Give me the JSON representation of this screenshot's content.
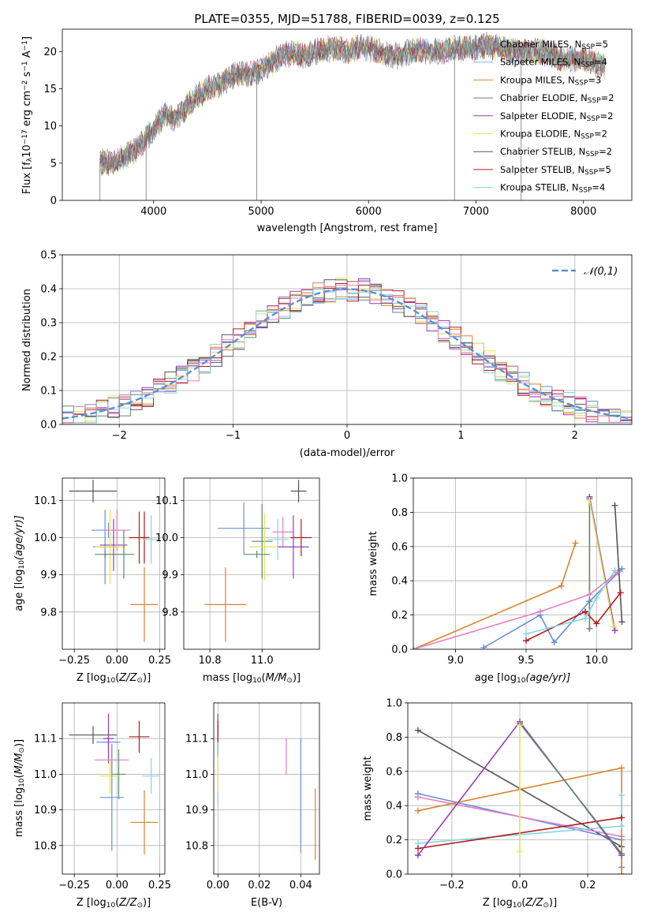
{
  "figure_title": "PLATE=0355, MJD=51788, FIBERID=0039, z=0.125",
  "colors": {
    "Chabrier MILES": "#6a8fd8",
    "Salpeter MILES": "#8fb0e0",
    "Kroupa MILES": "#d9822b",
    "Chabrier ELODIE": "#5c8a6a",
    "Salpeter ELODIE": "#9b3bb5",
    "Kroupa ELODIE": "#e3e35a",
    "Chabrier STELIB": "#555555",
    "Salpeter STELIB": "#b01c1c",
    "Kroupa STELIB": "#88d4e0",
    "pink": "#e37fc0",
    "gaussian": "#5b8fd8"
  },
  "chart_data": [
    {
      "id": "spectrum",
      "type": "line",
      "xlabel": "wavelength [Angstrom, rest frame]",
      "ylabel": "Flux [f",
      "ylabel_rest": "10",
      "ylabel_sup1": "−17",
      "ylabel_mid": " erg cm",
      "ylabel_sup2": "−2",
      "ylabel_mid2": " s",
      "ylabel_sup3": "−1",
      "ylabel_end": " A",
      "ylabel_sup4": "−1",
      "ylabel_close": "]",
      "xlim": [
        3150,
        8450
      ],
      "ylim": [
        0,
        23
      ],
      "xticks": [
        4000,
        5000,
        6000,
        7000,
        8000
      ],
      "yticks": [
        0,
        5,
        10,
        15,
        20
      ],
      "legend": [
        {
          "name": "Chabrier MILES, N",
          "sub": "SSP",
          "val": "=5",
          "color": "#6a8fd8"
        },
        {
          "name": "Salpeter MILES, N",
          "sub": "SSP",
          "val": "=4",
          "color": "#8fb0e0"
        },
        {
          "name": "Kroupa MILES, N",
          "sub": "SSP",
          "val": "=3",
          "color": "#d9822b"
        },
        {
          "name": "Chabrier ELODIE, N",
          "sub": "SSP",
          "val": "=2",
          "color": "#5c8a6a"
        },
        {
          "name": "Salpeter ELODIE, N",
          "sub": "SSP",
          "val": "=2",
          "color": "#9b3bb5"
        },
        {
          "name": "Kroupa ELODIE, N",
          "sub": "SSP",
          "val": "=2",
          "color": "#e3e35a"
        },
        {
          "name": "Chabrier STELIB, N",
          "sub": "SSP",
          "val": "=2",
          "color": "#555555"
        },
        {
          "name": "Salpeter STELIB, N",
          "sub": "SSP",
          "val": "=5",
          "color": "#b01c1c"
        },
        {
          "name": "Kroupa STELIB, N",
          "sub": "SSP",
          "val": "=4",
          "color": "#88d4e0"
        }
      ],
      "envelope": [
        [
          3500,
          5.2
        ],
        [
          3600,
          5.0
        ],
        [
          3700,
          5.6
        ],
        [
          3800,
          6.5
        ],
        [
          3900,
          7.8
        ],
        [
          4000,
          9.5
        ],
        [
          4100,
          11.5
        ],
        [
          4200,
          11.0
        ],
        [
          4300,
          12.5
        ],
        [
          4400,
          14.0
        ],
        [
          4500,
          15.0
        ],
        [
          4600,
          15.5
        ],
        [
          4700,
          16.5
        ],
        [
          4800,
          17.0
        ],
        [
          4900,
          17.0
        ],
        [
          5000,
          17.5
        ],
        [
          5100,
          18.5
        ],
        [
          5200,
          19.5
        ],
        [
          5300,
          19.8
        ],
        [
          5400,
          19.5
        ],
        [
          5500,
          20.0
        ],
        [
          5600,
          20.2
        ],
        [
          5700,
          20.5
        ],
        [
          5800,
          20.0
        ],
        [
          5900,
          20.5
        ],
        [
          6000,
          20.5
        ],
        [
          6100,
          20.0
        ],
        [
          6200,
          19.5
        ],
        [
          6300,
          19.5
        ],
        [
          6400,
          20.0
        ],
        [
          6500,
          20.2
        ],
        [
          6600,
          20.0
        ],
        [
          6700,
          20.0
        ],
        [
          6800,
          20.5
        ],
        [
          6900,
          20.5
        ],
        [
          7000,
          20.5
        ],
        [
          7100,
          20.8
        ],
        [
          7200,
          20.5
        ],
        [
          7300,
          20.2
        ],
        [
          7400,
          20.0
        ],
        [
          7500,
          20.0
        ],
        [
          7600,
          20.0
        ],
        [
          7700,
          19.5
        ],
        [
          7800,
          19.0
        ],
        [
          7900,
          19.0
        ],
        [
          8000,
          19.0
        ],
        [
          8100,
          18.5
        ],
        [
          8200,
          18.0
        ]
      ],
      "spikes_down": [
        [
          3500,
          0
        ],
        [
          3930,
          0
        ],
        [
          4960,
          0
        ],
        [
          6800,
          0
        ],
        [
          7420,
          0
        ]
      ]
    },
    {
      "id": "residuals",
      "type": "histogram",
      "xlabel": "(data-model)/error",
      "ylabel": "Normed distribution",
      "xlim": [
        -2.5,
        2.5
      ],
      "ylim": [
        0,
        0.5
      ],
      "xticks": [
        -2,
        -1,
        0,
        1,
        2
      ],
      "yticks": [
        0.0,
        0.1,
        0.2,
        0.3,
        0.4,
        0.5
      ],
      "legend": "𝒩(0,1)",
      "bin_width": 0.1,
      "hist_colors": [
        "#6a8fd8",
        "#d9822b",
        "#5c8a6a",
        "#9b3bb5",
        "#e3e35a",
        "#555555",
        "#b01c1c",
        "#88d4e0",
        "#e37fc0"
      ]
    },
    {
      "id": "age_vs_Z",
      "type": "errorbar",
      "xlabel": "Z [log",
      "xlabel_sub": "10",
      "xlabel_end": "(Z/Z",
      "xlabel_sun": "⊙",
      "xlabel_close": ")]",
      "ylabel": "age  [log",
      "ylabel_sub": "10",
      "ylabel_end": "(age/yr)]",
      "xlim": [
        -0.32,
        0.28
      ],
      "ylim": [
        9.7,
        10.16
      ],
      "xticks": [
        -0.25,
        0.0,
        0.25
      ],
      "xticklabels": [
        "−0.25",
        "0.00",
        "0.25"
      ],
      "yticks": [
        9.8,
        9.9,
        10.0,
        10.1
      ],
      "points": [
        {
          "x": -0.14,
          "y": 10.125,
          "xe": 0.14,
          "ye": 0.03,
          "c": "#555555"
        },
        {
          "x": -0.05,
          "y": 10.02,
          "xe": 0.1,
          "ye": 0.02,
          "c": "#6a8fd8"
        },
        {
          "x": -0.07,
          "y": 9.975,
          "xe": 0.07,
          "ye": 0.1,
          "c": "#6a8fd8"
        },
        {
          "x": -0.02,
          "y": 9.98,
          "xe": 0.08,
          "ye": 0.07,
          "c": "#9b3bb5"
        },
        {
          "x": 0.0,
          "y": 10.02,
          "xe": 0.08,
          "ye": 0.055,
          "c": "#e37fc0"
        },
        {
          "x": -0.04,
          "y": 9.975,
          "xe": 0.09,
          "ye": 0.1,
          "c": "#e3e35a"
        },
        {
          "x": 0.04,
          "y": 9.955,
          "xe": 0.06,
          "ye": 0.065,
          "c": "#5c8a6a"
        },
        {
          "x": -0.07,
          "y": 9.955,
          "xe": 0.06,
          "ye": 0.01,
          "c": "#5c8a6a"
        },
        {
          "x": 0.13,
          "y": 10.0,
          "xe": 0.06,
          "ye": 0.07,
          "c": "#b01c1c"
        },
        {
          "x": 0.16,
          "y": 10.0,
          "xe": 0.02,
          "ye": 0.07,
          "c": "#b01c1c"
        },
        {
          "x": 0.2,
          "y": 9.995,
          "xe": 0.05,
          "ye": 0.065,
          "c": "#88d4e0"
        },
        {
          "x": 0.16,
          "y": 9.82,
          "xe": 0.08,
          "ye": 0.1,
          "c": "#d9822b"
        }
      ]
    },
    {
      "id": "age_vs_mass",
      "type": "errorbar",
      "xlabel": "mass [log",
      "xlabel_sub": "10",
      "xlabel_end": "(M/M",
      "xlabel_sun": "⊙",
      "xlabel_close": ")]",
      "xlim": [
        10.7,
        11.22
      ],
      "ylim": [
        9.7,
        10.16
      ],
      "xticks": [
        10.8,
        11.0
      ],
      "xticklabels": [
        "10.8",
        "11.0"
      ],
      "yticks": [
        9.8,
        9.9,
        10.0,
        10.1
      ],
      "points": [
        {
          "x": 11.14,
          "y": 10.125,
          "xe": 0.03,
          "ye": 0.03,
          "c": "#555555"
        },
        {
          "x": 10.93,
          "y": 10.025,
          "xe": 0.1,
          "ye": 0.07,
          "c": "#6a8fd8"
        },
        {
          "x": 11.08,
          "y": 10.015,
          "xe": 0.04,
          "ye": 0.04,
          "c": "#e37fc0"
        },
        {
          "x": 11.0,
          "y": 9.99,
          "xe": 0.04,
          "ye": 0.1,
          "c": "#5c8a6a"
        },
        {
          "x": 11.01,
          "y": 9.975,
          "xe": 0.06,
          "ye": 0.09,
          "c": "#e3e35a"
        },
        {
          "x": 11.12,
          "y": 9.975,
          "xe": 0.06,
          "ye": 0.085,
          "c": "#9b3bb5"
        },
        {
          "x": 11.15,
          "y": 10.0,
          "xe": 0.04,
          "ye": 0.05,
          "c": "#b01c1c"
        },
        {
          "x": 11.06,
          "y": 9.995,
          "xe": 0.04,
          "ye": 0.055,
          "c": "#88d4e0"
        },
        {
          "x": 10.98,
          "y": 9.955,
          "xe": 0.05,
          "ye": 0.01,
          "c": "#5c8a6a"
        },
        {
          "x": 10.86,
          "y": 9.82,
          "xe": 0.08,
          "ye": 0.1,
          "c": "#d9822b"
        }
      ]
    },
    {
      "id": "weight_vs_age",
      "type": "line",
      "xlabel": "age  [log",
      "xlabel_sub": "10",
      "xlabel_end": "(age/yr)]",
      "ylabel": "mass weight",
      "xlim": [
        8.7,
        10.25
      ],
      "ylim": [
        0,
        1
      ],
      "xticks": [
        9.0,
        9.5,
        10.0
      ],
      "xticklabels": [
        "9.0",
        "9.5",
        "10.0"
      ],
      "yticks": [
        0.0,
        0.2,
        0.4,
        0.6,
        0.8,
        1.0
      ],
      "yticklabels": [
        "0.0",
        "0.2",
        "0.4",
        "0.6",
        "0.8",
        "1.0"
      ],
      "series": [
        {
          "c": "#6a8fd8",
          "x": [
            9.2,
            9.6,
            9.7,
            9.95,
            10.18
          ],
          "y": [
            0.01,
            0.2,
            0.04,
            0.28,
            0.47
          ]
        },
        {
          "c": "#d9822b",
          "x": [
            8.7,
            9.75,
            9.85
          ],
          "y": [
            0.0,
            0.37,
            0.62
          ]
        },
        {
          "c": "#5c8a6a",
          "x": [
            9.95,
            9.95
          ],
          "y": [
            0.88,
            0.12
          ]
        },
        {
          "c": "#9b3bb5",
          "x": [
            9.95,
            10.13
          ],
          "y": [
            0.89,
            0.11
          ]
        },
        {
          "c": "#e3e35a",
          "x": [
            9.95,
            10.12
          ],
          "y": [
            0.87,
            0.13
          ]
        },
        {
          "c": "#555555",
          "x": [
            10.13,
            10.18
          ],
          "y": [
            0.84,
            0.16
          ]
        },
        {
          "c": "#b01c1c",
          "x": [
            9.5,
            9.92,
            10.0,
            10.17
          ],
          "y": [
            0.05,
            0.22,
            0.15,
            0.33
          ]
        },
        {
          "c": "#88d4e0",
          "x": [
            9.5,
            9.92,
            10.0,
            10.13
          ],
          "y": [
            0.09,
            0.18,
            0.3,
            0.46
          ]
        },
        {
          "c": "#e37fc0",
          "x": [
            8.7,
            9.6,
            9.95,
            10.15
          ],
          "y": [
            0.0,
            0.22,
            0.32,
            0.45
          ]
        }
      ]
    },
    {
      "id": "mass_vs_Z",
      "type": "errorbar",
      "xlabel": "Z [log",
      "xlabel_sub": "10",
      "xlabel_end": "(Z/Z",
      "xlabel_sun": "⊙",
      "xlabel_close": ")]",
      "ylabel": "mass [log",
      "ylabel_sub": "10",
      "ylabel_end": "(M/M",
      "ylabel_sun": "⊙",
      "ylabel_close": ")]",
      "xlim": [
        -0.32,
        0.28
      ],
      "ylim": [
        10.72,
        11.2
      ],
      "xticks": [
        -0.25,
        0.0,
        0.25
      ],
      "xticklabels": [
        "−0.25",
        "0.00",
        "0.25"
      ],
      "yticks": [
        10.8,
        10.9,
        11.0,
        11.1
      ],
      "points": [
        {
          "x": -0.14,
          "y": 11.11,
          "xe": 0.14,
          "ye": 0.025,
          "c": "#555555"
        },
        {
          "x": -0.05,
          "y": 11.09,
          "xe": 0.07,
          "ye": 0.04,
          "c": "#6a8fd8"
        },
        {
          "x": -0.05,
          "y": 11.1,
          "xe": 0.03,
          "ye": 0.07,
          "c": "#9b3bb5"
        },
        {
          "x": -0.03,
          "y": 11.04,
          "xe": 0.1,
          "ye": 0.04,
          "c": "#e37fc0"
        },
        {
          "x": 0.01,
          "y": 11.0,
          "xe": 0.04,
          "ye": 0.07,
          "c": "#5c8a6a"
        },
        {
          "x": -0.04,
          "y": 10.995,
          "xe": 0.06,
          "ye": 0.05,
          "c": "#e3e35a"
        },
        {
          "x": 0.13,
          "y": 11.105,
          "xe": 0.06,
          "ye": 0.045,
          "c": "#b01c1c"
        },
        {
          "x": 0.2,
          "y": 10.995,
          "xe": 0.05,
          "ye": 0.05,
          "c": "#88d4e0"
        },
        {
          "x": -0.03,
          "y": 10.935,
          "xe": 0.07,
          "ye": 0.15,
          "c": "#6a8fd8"
        },
        {
          "x": 0.16,
          "y": 10.865,
          "xe": 0.08,
          "ye": 0.09,
          "c": "#d9822b"
        }
      ]
    },
    {
      "id": "mass_vs_ebv",
      "type": "errorbar",
      "xlabel": "E(B-V)",
      "xlim": [
        -0.002,
        0.049
      ],
      "ylim": [
        10.72,
        11.2
      ],
      "xticks": [
        0.0,
        0.02,
        0.04
      ],
      "xticklabels": [
        "0.00",
        "0.02",
        "0.04"
      ],
      "yticks": [
        10.8,
        10.9,
        11.0,
        11.1
      ],
      "points": [
        {
          "x": 0.0,
          "y": 11.11,
          "xe": 0.0,
          "ye": 0.06,
          "c": "#9b3bb5"
        },
        {
          "x": 0.0,
          "y": 11.1,
          "xe": 0.0,
          "ye": 0.05,
          "c": "#b01c1c"
        },
        {
          "x": 0.0,
          "y": 11.0,
          "xe": 0.0,
          "ye": 0.09,
          "c": "#88d4e0"
        },
        {
          "x": 0.0,
          "y": 11.0,
          "xe": 0.0,
          "ye": 0.05,
          "c": "#e3e35a"
        },
        {
          "x": 0.033,
          "y": 11.05,
          "xe": 0.0,
          "ye": 0.05,
          "c": "#e37fc0"
        },
        {
          "x": 0.04,
          "y": 10.94,
          "xe": 0.0,
          "ye": 0.16,
          "c": "#6a8fd8"
        },
        {
          "x": 0.047,
          "y": 10.86,
          "xe": 0.0,
          "ye": 0.1,
          "c": "#d9822b"
        }
      ]
    },
    {
      "id": "weight_vs_Z",
      "type": "line",
      "xlabel": "Z [log",
      "xlabel_sub": "10",
      "xlabel_end": "(Z/Z",
      "xlabel_sun": "⊙",
      "xlabel_close": ")]",
      "ylabel": "mass weight",
      "xlim": [
        -0.33,
        0.33
      ],
      "ylim": [
        0,
        1
      ],
      "xticks": [
        -0.2,
        0.0,
        0.2
      ],
      "xticklabels": [
        "−0.2",
        "0.0",
        "0.2"
      ],
      "yticks": [
        0.0,
        0.2,
        0.4,
        0.6,
        0.8,
        1.0
      ],
      "yticklabels": [
        "0.0",
        "0.2",
        "0.4",
        "0.6",
        "0.8",
        "1.0"
      ],
      "series": [
        {
          "c": "#555555",
          "x": [
            -0.3,
            0.3
          ],
          "y": [
            0.84,
            0.16
          ]
        },
        {
          "c": "#6a8fd8",
          "x": [
            -0.3,
            0.3,
            0.3
          ],
          "y": [
            0.47,
            0.2,
            0.04
          ]
        },
        {
          "c": "#e37fc0",
          "x": [
            -0.3,
            0.3
          ],
          "y": [
            0.45,
            0.22
          ]
        },
        {
          "c": "#d9822b",
          "x": [
            -0.3,
            0.3,
            0.3
          ],
          "y": [
            0.37,
            0.62,
            0.0
          ]
        },
        {
          "c": "#88d4e0",
          "x": [
            -0.3,
            0.3,
            0.3
          ],
          "y": [
            0.18,
            0.28,
            0.46
          ]
        },
        {
          "c": "#b01c1c",
          "x": [
            -0.3,
            0.3
          ],
          "y": [
            0.15,
            0.33
          ]
        },
        {
          "c": "#9b3bb5",
          "x": [
            -0.3,
            0.0,
            0.3
          ],
          "y": [
            0.11,
            0.89,
            0.11
          ]
        },
        {
          "c": "#5c8a6a",
          "x": [
            0.0,
            0.3
          ],
          "y": [
            0.88,
            0.12
          ]
        },
        {
          "c": "#e3e35a",
          "x": [
            0.0,
            0.0
          ],
          "y": [
            0.87,
            0.13
          ]
        }
      ]
    }
  ]
}
